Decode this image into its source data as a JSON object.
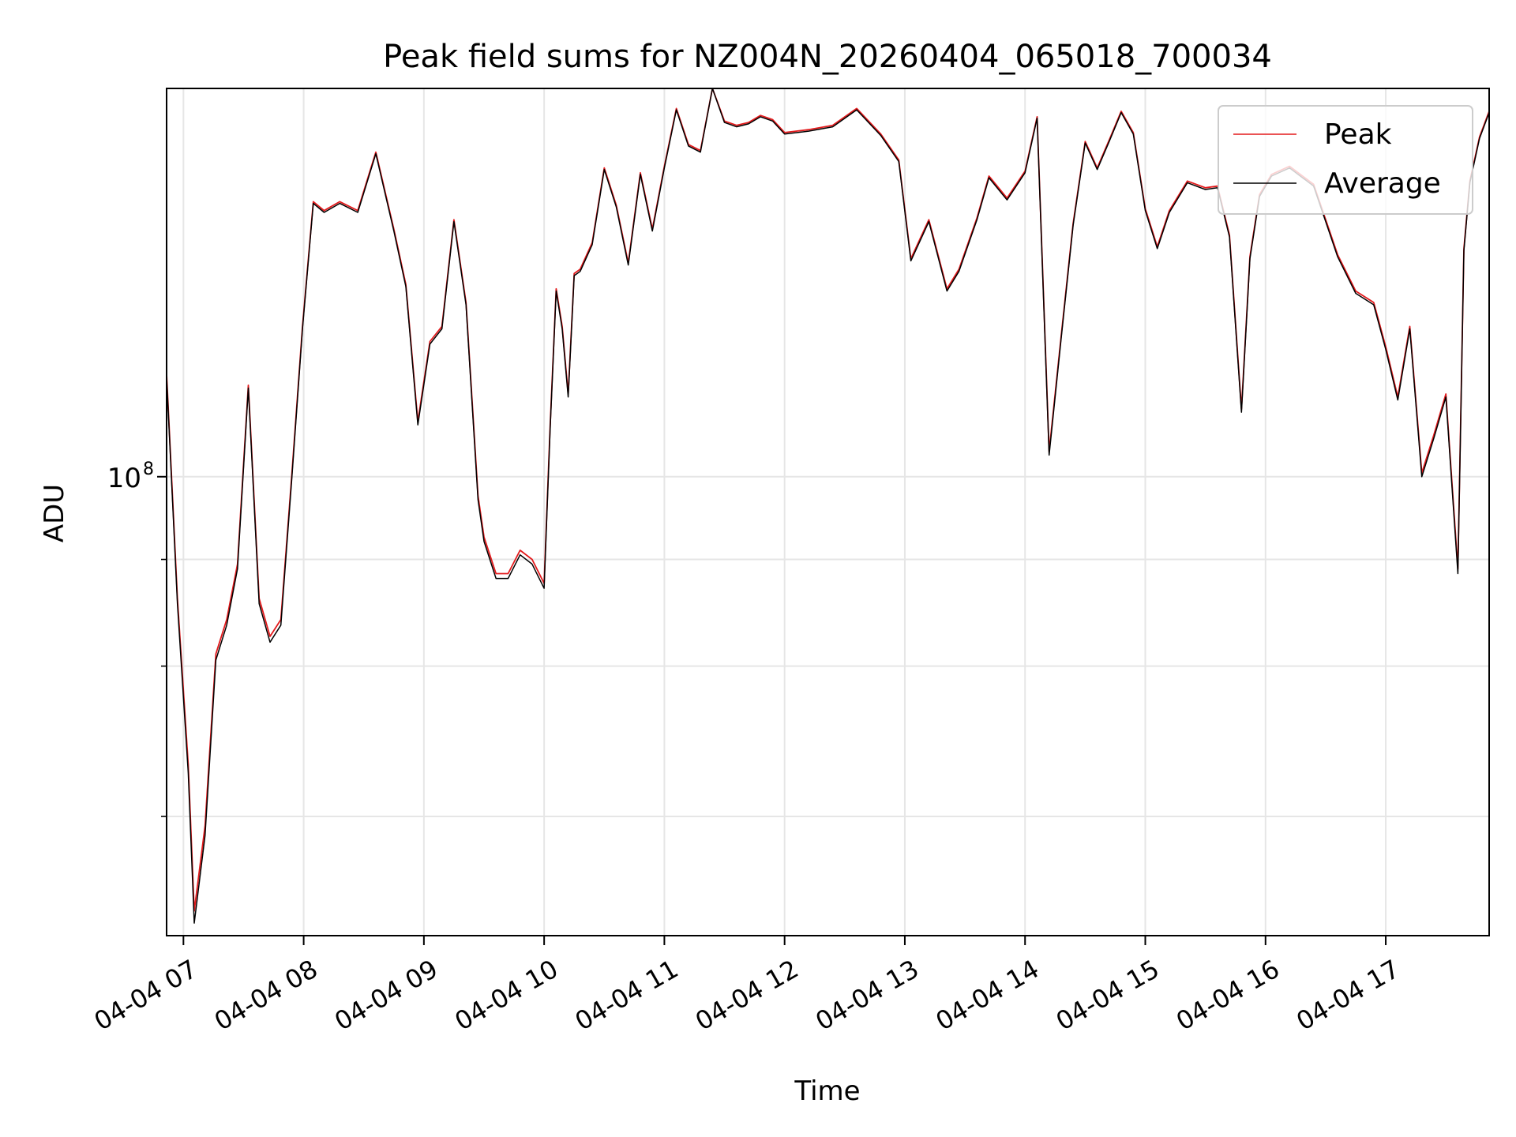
{
  "chart_data": {
    "type": "line",
    "title": "Peak field sums for NZ004N_20260404_065018_700034",
    "xlabel": "Time",
    "ylabel": "ADU",
    "yscale": "log",
    "grid": true,
    "legend_loc": "upper right",
    "xlim": [
      6.86,
      17.86
    ],
    "ylim": [
      29000000,
      285000000
    ],
    "x_ticks": [
      {
        "value": 7,
        "label": "04-04 07"
      },
      {
        "value": 8,
        "label": "04-04 08"
      },
      {
        "value": 9,
        "label": "04-04 09"
      },
      {
        "value": 10,
        "label": "04-04 10"
      },
      {
        "value": 11,
        "label": "04-04 11"
      },
      {
        "value": 12,
        "label": "04-04 12"
      },
      {
        "value": 13,
        "label": "04-04 13"
      },
      {
        "value": 14,
        "label": "04-04 14"
      },
      {
        "value": 15,
        "label": "04-04 15"
      },
      {
        "value": 16,
        "label": "04-04 16"
      },
      {
        "value": 17,
        "label": "04-04 17"
      }
    ],
    "y_major_ticks": [
      {
        "value": 100000000,
        "base": "10",
        "exp": "8"
      }
    ],
    "y_minor_ticks": [
      40000000,
      60000000,
      80000000
    ],
    "x_hours": [
      6.86,
      6.95,
      7.04,
      7.09,
      7.18,
      7.27,
      7.36,
      7.45,
      7.54,
      7.63,
      7.72,
      7.81,
      7.9,
      7.99,
      8.08,
      8.17,
      8.3,
      8.45,
      8.6,
      8.75,
      8.85,
      8.95,
      9.05,
      9.15,
      9.25,
      9.35,
      9.45,
      9.5,
      9.6,
      9.7,
      9.8,
      9.9,
      10.0,
      10.05,
      10.1,
      10.15,
      10.2,
      10.25,
      10.3,
      10.4,
      10.5,
      10.6,
      10.7,
      10.8,
      10.9,
      11.0,
      11.1,
      11.2,
      11.3,
      11.4,
      11.5,
      11.6,
      11.7,
      11.8,
      11.9,
      12.0,
      12.2,
      12.4,
      12.6,
      12.8,
      12.95,
      13.05,
      13.2,
      13.35,
      13.45,
      13.6,
      13.7,
      13.85,
      14.0,
      14.1,
      14.2,
      14.3,
      14.4,
      14.5,
      14.6,
      14.7,
      14.8,
      14.9,
      15.0,
      15.1,
      15.2,
      15.35,
      15.5,
      15.6,
      15.7,
      15.8,
      15.87,
      15.95,
      16.05,
      16.2,
      16.4,
      16.6,
      16.75,
      16.9,
      17.0,
      17.1,
      17.2,
      17.3,
      17.4,
      17.5,
      17.6,
      17.65,
      17.7,
      17.78,
      17.86
    ],
    "series": [
      {
        "name": "Peak",
        "color": "#e31a1c",
        "values": [
          132000000,
          72000000,
          46000000,
          31000000,
          39000000,
          62000000,
          68000000,
          79000000,
          128000000,
          72000000,
          65000000,
          68000000,
          100000000,
          150000000,
          210000000,
          205000000,
          210000000,
          205000000,
          240000000,
          195000000,
          168000000,
          116000000,
          144000000,
          150000000,
          200000000,
          160000000,
          95000000,
          85000000,
          77000000,
          77000000,
          82000000,
          80000000,
          75000000,
          115000000,
          166000000,
          150000000,
          125000000,
          173000000,
          175000000,
          188000000,
          230000000,
          208000000,
          178000000,
          227000000,
          195000000,
          231000000,
          270000000,
          245000000,
          241000000,
          300000000,
          261000000,
          258000000,
          260000000,
          265000000,
          262000000,
          253000000,
          255000000,
          258000000,
          270000000,
          252000000,
          235000000,
          180000000,
          200000000,
          166000000,
          175000000,
          201000000,
          225000000,
          212000000,
          228000000,
          264000000,
          107000000,
          146000000,
          198000000,
          247000000,
          230000000,
          248000000,
          268000000,
          253000000,
          206000000,
          186000000,
          205000000,
          222000000,
          218000000,
          219000000,
          192000000,
          120000000,
          181000000,
          214000000,
          226000000,
          231000000,
          220000000,
          182000000,
          165000000,
          160000000,
          142000000,
          124000000,
          150000000,
          101000000,
          112000000,
          125000000,
          78000000,
          185000000,
          222000000,
          250000000,
          268000000
        ]
      },
      {
        "name": "Average",
        "color": "#000000",
        "values": [
          131000000,
          71000000,
          45000000,
          30000000,
          38000000,
          61000000,
          67000000,
          78000000,
          127000000,
          71000000,
          64000000,
          67000000,
          99000000,
          149000000,
          209000000,
          204000000,
          209000000,
          204000000,
          239000000,
          194000000,
          167000000,
          115000000,
          143000000,
          149000000,
          199000000,
          159000000,
          94000000,
          84000000,
          76000000,
          76000000,
          81000000,
          79000000,
          74000000,
          114000000,
          165000000,
          149000000,
          124000000,
          172000000,
          174000000,
          187000000,
          229000000,
          207000000,
          177000000,
          226000000,
          194000000,
          230000000,
          269000000,
          244000000,
          240000000,
          299000000,
          260000000,
          257000000,
          259000000,
          264000000,
          261000000,
          252000000,
          254000000,
          257000000,
          269000000,
          251000000,
          234000000,
          179000000,
          199000000,
          165000000,
          174000000,
          200000000,
          224000000,
          211000000,
          227000000,
          263000000,
          106000000,
          145000000,
          197000000,
          246000000,
          229000000,
          247000000,
          267000000,
          252000000,
          205000000,
          185000000,
          204000000,
          221000000,
          217000000,
          218000000,
          191000000,
          119000000,
          180000000,
          213000000,
          225000000,
          230000000,
          219000000,
          181000000,
          164000000,
          159000000,
          141000000,
          123000000,
          149000000,
          100000000,
          111000000,
          124000000,
          77000000,
          184000000,
          221000000,
          249000000,
          267000000
        ]
      }
    ]
  }
}
